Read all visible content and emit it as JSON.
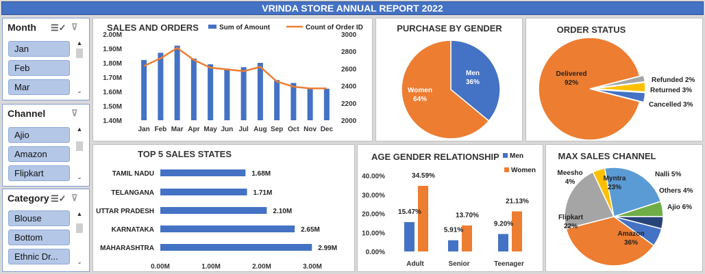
{
  "title": "VRINDA STORE ANNUAL REPORT 2022",
  "slicers": [
    {
      "name": "month",
      "label": "Month",
      "items": [
        "Jan",
        "Feb",
        "Mar"
      ]
    },
    {
      "name": "channel",
      "label": "Channel",
      "items": [
        "Ajio",
        "Amazon",
        "Flipkart"
      ]
    },
    {
      "name": "category",
      "label": "Category",
      "items": [
        "Blouse",
        "Bottom",
        "Ethnic Dr..."
      ]
    }
  ],
  "colors": {
    "blue": "#4472c4",
    "orange": "#ed7d31",
    "gray": "#a5a5a5",
    "yellow": "#ffc000",
    "lightblue": "#5b9bd5",
    "green": "#70ad47",
    "navy": "#264478"
  },
  "chart_data": [
    {
      "id": "sales-orders",
      "type": "bar",
      "title": "SALES AND ORDERS",
      "categories": [
        "Jan",
        "Feb",
        "Mar",
        "Apr",
        "May",
        "Jun",
        "Jul",
        "Aug",
        "Sep",
        "Oct",
        "Nov",
        "Dec"
      ],
      "series": [
        {
          "name": "Sum of Amount",
          "type": "bar",
          "axis": "left",
          "values": [
            1.82,
            1.87,
            1.92,
            1.83,
            1.79,
            1.76,
            1.77,
            1.8,
            1.68,
            1.66,
            1.62,
            1.62
          ]
        },
        {
          "name": "Count of Order ID",
          "type": "line",
          "axis": "right",
          "values": [
            2630,
            2720,
            2840,
            2700,
            2610,
            2590,
            2570,
            2620,
            2450,
            2390,
            2370,
            2370
          ]
        }
      ],
      "ylim_left": [
        1.4,
        2.0
      ],
      "yticks_left": [
        "1.40M",
        "1.50M",
        "1.60M",
        "1.70M",
        "1.80M",
        "1.90M",
        "2.00M"
      ],
      "ylim_right": [
        2000,
        3000
      ],
      "yticks_right": [
        "2000",
        "2200",
        "2400",
        "2600",
        "2800",
        "3000"
      ],
      "legend": "top"
    },
    {
      "id": "purchase-gender",
      "type": "pie",
      "title": "PURCHASE BY GENDER",
      "slices": [
        {
          "name": "Men",
          "value": 36,
          "label": "36%"
        },
        {
          "name": "Women",
          "value": 64,
          "label": "64%"
        }
      ]
    },
    {
      "id": "order-status",
      "type": "pie",
      "title": "ORDER  STATUS",
      "slices": [
        {
          "name": "Delivered",
          "value": 92,
          "label": "92%"
        },
        {
          "name": "Refunded",
          "value": 2,
          "label": "2%"
        },
        {
          "name": "Returned",
          "value": 3,
          "label": "3%"
        },
        {
          "name": "Cancelled",
          "value": 3,
          "label": "3%"
        }
      ]
    },
    {
      "id": "top-states",
      "type": "bar",
      "orientation": "horizontal",
      "title": "TOP 5 SALES STATES",
      "categories": [
        "TAMIL NADU",
        "TELANGANA",
        "UTTAR PRADESH",
        "KARNATAKA",
        "MAHARASHTRA"
      ],
      "values": [
        1.68,
        1.71,
        2.1,
        2.65,
        2.99
      ],
      "value_labels": [
        "1.68M",
        "1.71M",
        "2.10M",
        "2.65M",
        "2.99M"
      ],
      "xlim": [
        0,
        3.0
      ],
      "xticks": [
        "0.00M",
        "1.00M",
        "2.00M",
        "3.00M"
      ]
    },
    {
      "id": "age-gender",
      "type": "bar",
      "title": "AGE GENDER RELATIONSHIP",
      "categories": [
        "Adult",
        "Senior",
        "Teenager"
      ],
      "series": [
        {
          "name": "Men",
          "values": [
            15.47,
            5.91,
            9.2
          ],
          "labels": [
            "15.47%",
            "5.91%",
            "9.20%"
          ]
        },
        {
          "name": "Women",
          "values": [
            34.59,
            13.7,
            21.13
          ],
          "labels": [
            "34.59%",
            "13.70%",
            "21.13%"
          ]
        }
      ],
      "ylim": [
        0,
        40
      ],
      "yticks": [
        "0.00%",
        "10.00%",
        "20.00%",
        "30.00%",
        "40.00%"
      ],
      "legend": "top-right"
    },
    {
      "id": "max-channel",
      "type": "pie",
      "title": "MAX SALES CHANNEL",
      "slices": [
        {
          "name": "Myntra",
          "value": 23,
          "label": "23%"
        },
        {
          "name": "Nalli",
          "value": 5,
          "label": "5%"
        },
        {
          "name": "Others",
          "value": 4,
          "label": "4%"
        },
        {
          "name": "Ajio",
          "value": 6,
          "label": "6%"
        },
        {
          "name": "Amazon",
          "value": 36,
          "label": "36%"
        },
        {
          "name": "Flipkart",
          "value": 22,
          "label": "22%"
        },
        {
          "name": "Meesho",
          "value": 4,
          "label": "4%"
        }
      ]
    }
  ]
}
